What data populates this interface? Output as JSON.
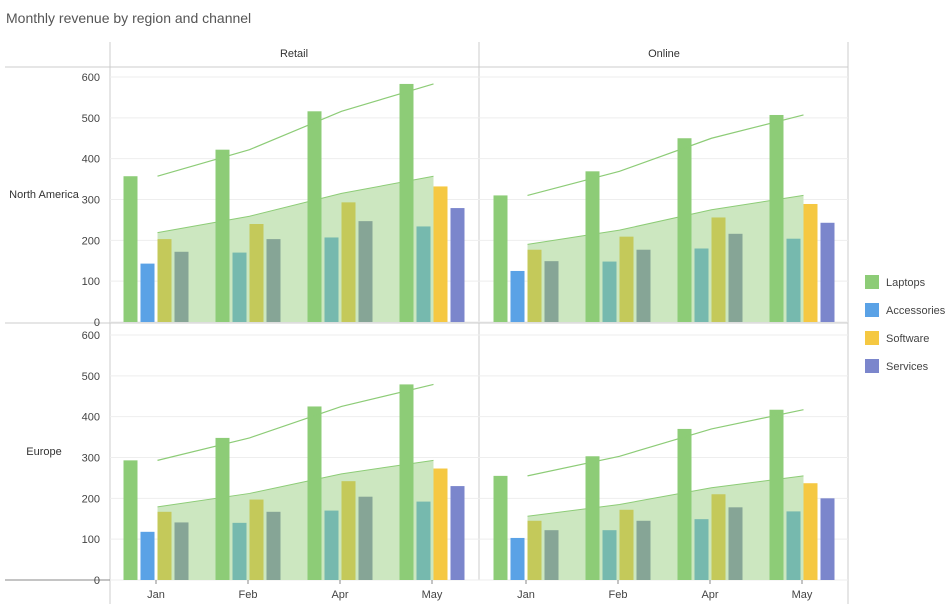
{
  "title": "Monthly revenue by region and channel",
  "chart_data": {
    "type": "bar",
    "title": "Monthly revenue by region and channel",
    "categories": [
      "Jan",
      "Feb",
      "Apr",
      "May"
    ],
    "ylim": [
      0,
      600
    ],
    "y_ticks": [
      0,
      100,
      200,
      300,
      400,
      500,
      600
    ],
    "grid": true,
    "legend_position": "right",
    "columns": [
      "Retail",
      "Online"
    ],
    "rows": [
      "North America",
      "Europe"
    ],
    "legend": [
      {
        "name": "Laptops",
        "color": "#8dcc77"
      },
      {
        "name": "Accessories",
        "color": "#5aa2e6"
      },
      {
        "name": "Software",
        "color": "#f5c842"
      },
      {
        "name": "Services",
        "color": "#7b86cc"
      }
    ],
    "panels": [
      {
        "row": "North America",
        "column": "Retail",
        "series": [
          {
            "name": "Laptops",
            "values": [
              357,
              422,
              516,
              583
            ]
          },
          {
            "name": "Accessories",
            "values": [
              143,
              170,
              207,
              234
            ]
          },
          {
            "name": "Software",
            "values": [
              203,
              240,
              293,
              332
            ]
          },
          {
            "name": "Services",
            "values": [
              172,
              203,
              247,
              279
            ]
          }
        ],
        "line_values": [
          357,
          422,
          516,
          583
        ],
        "area_values": [
          219,
          259,
          315,
          357
        ]
      },
      {
        "row": "North America",
        "column": "Online",
        "series": [
          {
            "name": "Laptops",
            "values": [
              310,
              369,
              450,
              507
            ]
          },
          {
            "name": "Accessories",
            "values": [
              125,
              148,
              180,
              204
            ]
          },
          {
            "name": "Software",
            "values": [
              177,
              209,
              256,
              289
            ]
          },
          {
            "name": "Services",
            "values": [
              149,
              177,
              216,
              243
            ]
          }
        ],
        "line_values": [
          310,
          369,
          450,
          507
        ],
        "area_values": [
          190,
          225,
          275,
          310
        ]
      },
      {
        "row": "Europe",
        "column": "Retail",
        "series": [
          {
            "name": "Laptops",
            "values": [
              293,
              348,
              425,
              479
            ]
          },
          {
            "name": "Accessories",
            "values": [
              118,
              140,
              170,
              192
            ]
          },
          {
            "name": "Software",
            "values": [
              167,
              197,
              242,
              273
            ]
          },
          {
            "name": "Services",
            "values": [
              141,
              167,
              204,
              230
            ]
          }
        ],
        "line_values": [
          293,
          348,
          425,
          479
        ],
        "area_values": [
          179,
          212,
          260,
          293
        ]
      },
      {
        "row": "Europe",
        "column": "Online",
        "series": [
          {
            "name": "Laptops",
            "values": [
              255,
              303,
              370,
              417
            ]
          },
          {
            "name": "Accessories",
            "values": [
              103,
              122,
              149,
              168
            ]
          },
          {
            "name": "Software",
            "values": [
              145,
              172,
              210,
              237
            ]
          },
          {
            "name": "Services",
            "values": [
              122,
              145,
              178,
              200
            ]
          }
        ],
        "line_values": [
          255,
          303,
          370,
          417
        ],
        "area_values": [
          156,
          185,
          226,
          255
        ]
      }
    ]
  }
}
